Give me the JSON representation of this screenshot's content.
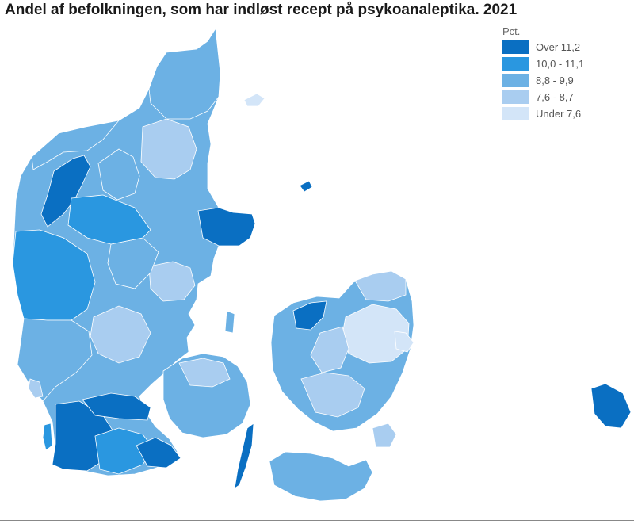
{
  "title": "Andel af befolkningen, som har indløst recept på psykoanaleptika. 2021",
  "legend": {
    "title": "Pct.",
    "classes": [
      {
        "label": "Over 11,2",
        "color": "#0a6fc2"
      },
      {
        "label": "10,0 - 11,1",
        "color": "#2a97e0"
      },
      {
        "label": "8,8 - 9,9",
        "color": "#6cb1e4"
      },
      {
        "label": "7,6 - 8,7",
        "color": "#a9cdf0"
      },
      {
        "label": "Under 7,6",
        "color": "#d3e5f8"
      }
    ]
  },
  "colors": {
    "background": "#ffffff",
    "border": "#ffffff"
  }
}
